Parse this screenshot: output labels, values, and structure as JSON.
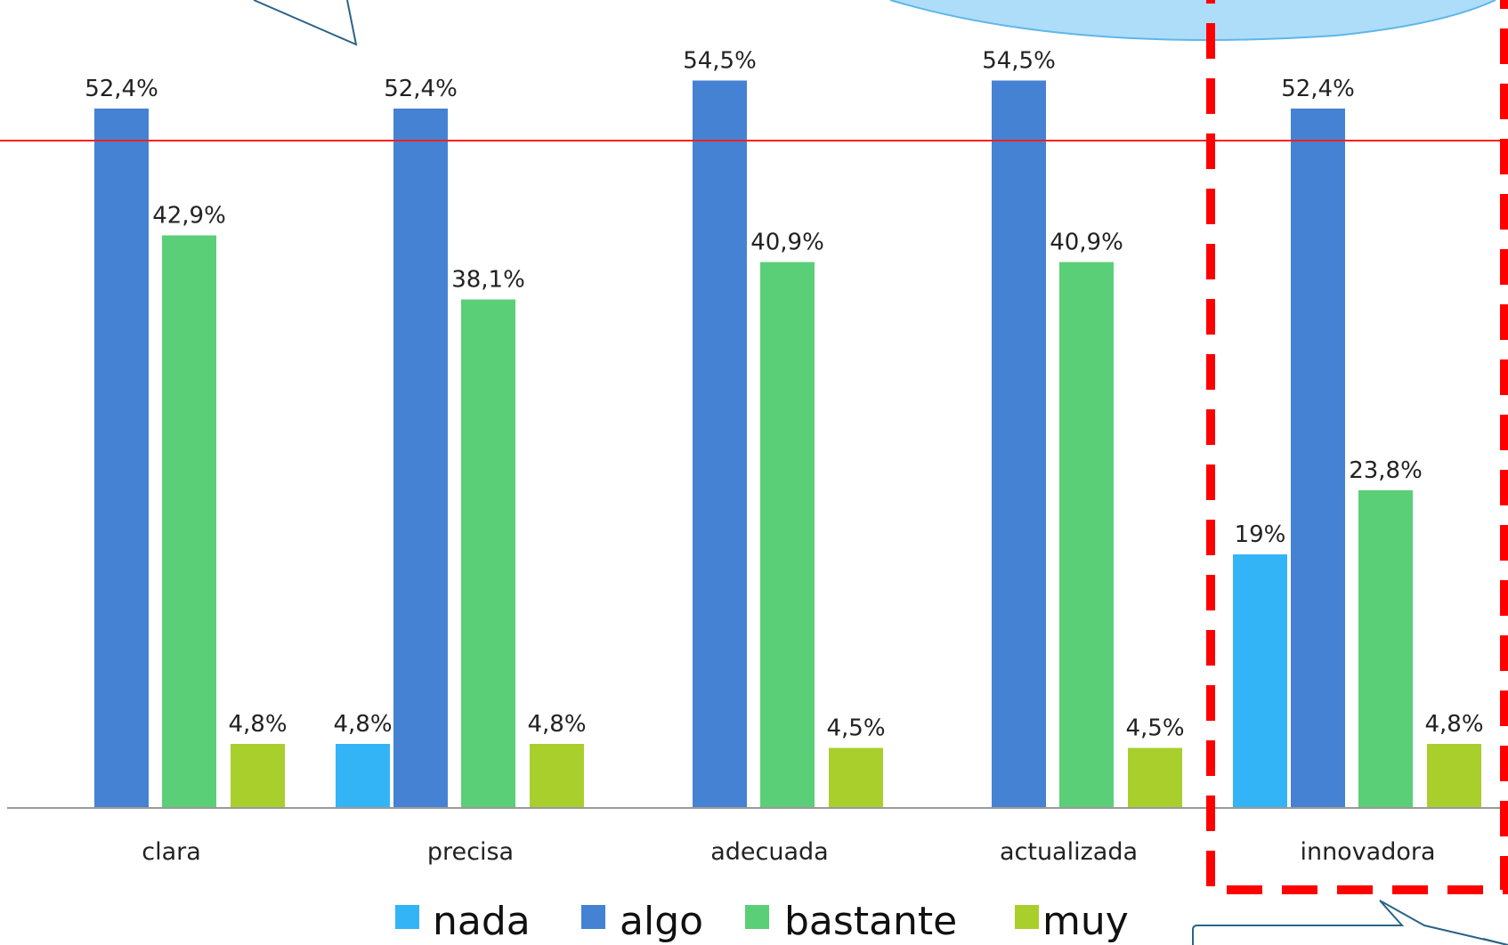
{
  "chart_data": {
    "type": "bar",
    "categories": [
      "clara",
      "precisa",
      "adecuada",
      "actualizada",
      "innovadora"
    ],
    "series": [
      {
        "name": "nada",
        "values": [
          null,
          4.8,
          null,
          null,
          19
        ],
        "labels": [
          "",
          "4,8%",
          "",
          "",
          "19%"
        ]
      },
      {
        "name": "algo",
        "values": [
          52.4,
          52.4,
          54.5,
          54.5,
          52.4
        ],
        "labels": [
          "52,4%",
          "52,4%",
          "54,5%",
          "54,5%",
          "52,4%"
        ]
      },
      {
        "name": "bastante",
        "values": [
          42.9,
          38.1,
          40.9,
          40.9,
          23.8
        ],
        "labels": [
          "42,9%",
          "38,1%",
          "40,9%",
          "40,9%",
          "23,8%"
        ]
      },
      {
        "name": "muy",
        "values": [
          4.8,
          4.8,
          4.5,
          4.5,
          4.8
        ],
        "labels": [
          "4,8%",
          "4,8%",
          "4,5%",
          "4,5%",
          "4,8%"
        ]
      }
    ],
    "colors": {
      "nada": "#33b4f7",
      "algo": "#4582d3",
      "bastante": "#5bcf78",
      "muy": "#a8cf2c"
    },
    "reference_line": {
      "value": 50,
      "color": "#ff2020"
    },
    "highlight_category": "innovadora",
    "highlight_color": "#ff0000",
    "ylim": [
      0,
      55
    ],
    "legend_position": "bottom",
    "grid": false
  }
}
